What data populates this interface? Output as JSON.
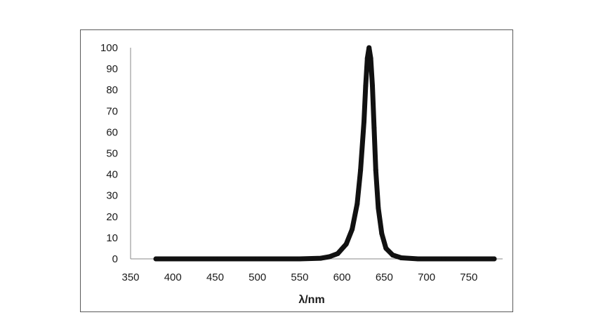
{
  "chart_data": {
    "type": "line",
    "title": "",
    "xlabel": "λ/nm",
    "ylabel": "",
    "xlim": [
      350,
      790
    ],
    "ylim": [
      0,
      100
    ],
    "x_ticks": [
      350,
      400,
      450,
      500,
      550,
      600,
      650,
      700,
      750
    ],
    "y_ticks": [
      0,
      10,
      20,
      30,
      40,
      50,
      60,
      70,
      80,
      90,
      100
    ],
    "grid": false,
    "legend": "none",
    "series": [
      {
        "color": "#111111",
        "x": [
          380,
          450,
          500,
          550,
          575,
          585,
          595,
          605,
          612,
          618,
          622,
          626,
          628,
          630,
          632,
          634,
          636,
          638,
          640,
          643,
          647,
          652,
          660,
          670,
          690,
          720,
          750,
          780
        ],
        "y": [
          0,
          0,
          0,
          0,
          0.3,
          1,
          2.5,
          7,
          14,
          26,
          42,
          65,
          82,
          95,
          100,
          95,
          82,
          62,
          42,
          24,
          12,
          5,
          1.8,
          0.5,
          0,
          0,
          0,
          0
        ]
      }
    ]
  }
}
